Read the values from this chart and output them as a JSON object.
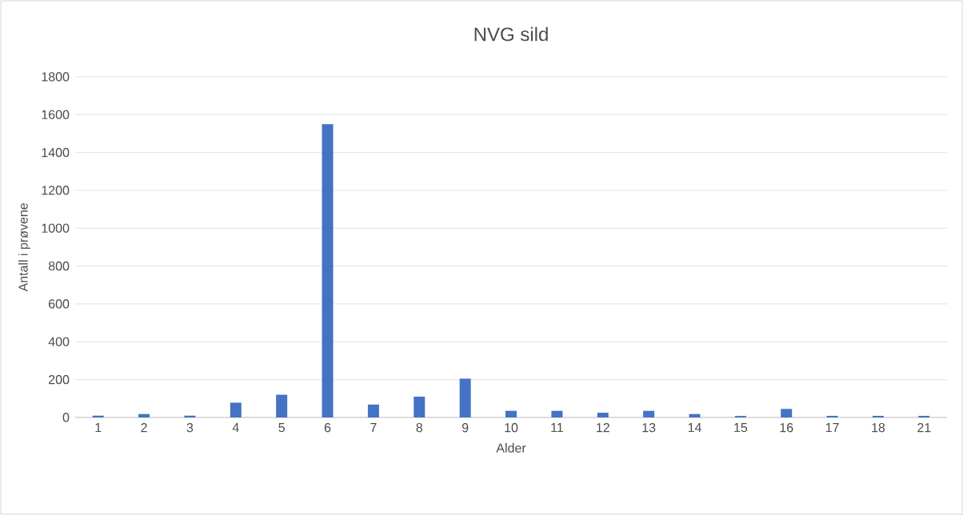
{
  "chart_data": {
    "type": "bar",
    "title": "NVG sild",
    "xlabel": "Alder",
    "ylabel": "Antall i prøvene",
    "categories": [
      "1",
      "2",
      "3",
      "4",
      "5",
      "6",
      "7",
      "8",
      "9",
      "10",
      "11",
      "12",
      "13",
      "14",
      "15",
      "16",
      "17",
      "18",
      "21"
    ],
    "values": [
      10,
      18,
      10,
      78,
      120,
      1550,
      68,
      110,
      205,
      35,
      35,
      25,
      35,
      18,
      8,
      45,
      8,
      8,
      8
    ],
    "color": "#4472c4",
    "ylim": [
      0,
      1800
    ],
    "yticks": [
      0,
      200,
      400,
      600,
      800,
      1000,
      1200,
      1400,
      1600,
      1800
    ],
    "grid": "y"
  }
}
